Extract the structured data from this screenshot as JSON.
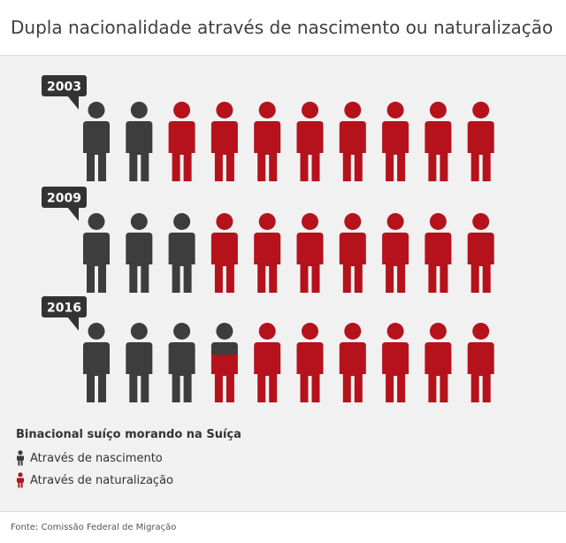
{
  "title": "Dupla nacionalidade através de nascimento ou naturalização",
  "source": "Fonte: Comissão Federal de Migração",
  "legend": {
    "title": "Binacional suíço morando na Suíça",
    "items": [
      {
        "label": "Através de nascimento",
        "color": "#3d3d3d"
      },
      {
        "label": "Através de naturalização",
        "color": "#b5121b"
      }
    ]
  },
  "colors": {
    "birth": "#3d3d3d",
    "naturalization": "#b5121b",
    "callout": "#333333",
    "callout_text": "#ffffff"
  },
  "chart_data": {
    "type": "pictogram",
    "icons_per_row": 10,
    "series": [
      {
        "name": "Através de nascimento"
      },
      {
        "name": "Através de naturalização"
      }
    ],
    "rows": [
      {
        "year": "2003",
        "birth_icons": 2.0,
        "naturalization_icons": 8.0
      },
      {
        "year": "2009",
        "birth_icons": 3.0,
        "naturalization_icons": 7.0
      },
      {
        "year": "2016",
        "birth_icons": 3.4,
        "naturalization_icons": 6.6
      }
    ]
  }
}
